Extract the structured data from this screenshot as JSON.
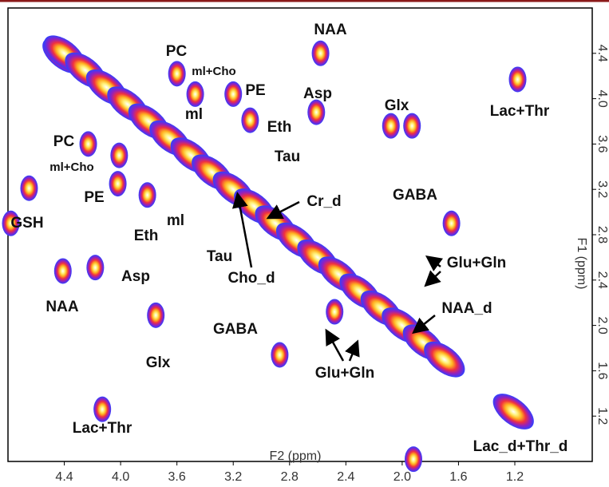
{
  "chart_data": {
    "type": "scatter",
    "xlabel": "F2 (ppm)",
    "ylabel": "F1 (ppm)",
    "xlim": [
      4.8,
      0.65
    ],
    "ylim": [
      0.8,
      4.8
    ],
    "xticks": [
      4.4,
      {
        "value": 4,
        "label": "4.0"
      },
      3.6,
      3.2,
      2.8,
      2.4,
      {
        "value": 2,
        "label": "2.0"
      },
      1.6,
      1.2
    ],
    "yticks": [
      1.2,
      1.6,
      {
        "value": 2,
        "label": "2.0"
      },
      2.4,
      2.8,
      3.2,
      3.6,
      {
        "value": 4,
        "label": "4.0"
      },
      4.4
    ],
    "colormap": [
      "#ffffff",
      "#fff27a",
      "#ffb020",
      "#f03040",
      "#9020c0",
      "#3040ff"
    ],
    "x": [
      4.41,
      2.58,
      1.18,
      2.08,
      1.93,
      2.61,
      3.6,
      3.47,
      3.2,
      3.08,
      1.65,
      4.78,
      4.23,
      4.02,
      3.81,
      4.01,
      4.18,
      4.41,
      3.75,
      2.87,
      4.13,
      1.21,
      1.92,
      4.65,
      2.48,
      4.4,
      4.25,
      4.1,
      3.95,
      3.8,
      3.65,
      3.5,
      3.35,
      3.2,
      3.05,
      2.9,
      2.75,
      2.6,
      2.45,
      2.3,
      2.15,
      2.0,
      1.85,
      1.7
    ],
    "y": [
      2.48,
      4.4,
      4.17,
      3.76,
      3.76,
      3.88,
      4.22,
      4.04,
      4.04,
      3.81,
      2.9,
      2.9,
      3.6,
      3.25,
      3.15,
      3.5,
      2.51,
      4.38,
      2.09,
      1.74,
      1.26,
      1.24,
      0.82,
      3.21,
      2.12,
      4.4,
      4.25,
      4.1,
      3.95,
      3.8,
      3.65,
      3.5,
      3.35,
      3.2,
      3.05,
      2.9,
      2.75,
      2.6,
      2.45,
      2.3,
      2.15,
      2.0,
      1.85,
      1.7
    ],
    "annotations": [
      "NAA",
      "Asp",
      "Glx",
      "Lac+Thr",
      "PC",
      "ml+Cho",
      "ml",
      "PE",
      "Eth",
      "Tau",
      "PC",
      "ml+Cho",
      "PE",
      "GSH",
      "Eth",
      "ml",
      "Asp",
      "NAA",
      "Glx",
      "Tau",
      "Cho_d",
      "Cr_d",
      "GABA",
      "Glu+Gln",
      "NAA_d",
      "GABA",
      "Glu+Gln",
      "Lac+Thr",
      "Lac_d+Thr_d"
    ]
  }
}
